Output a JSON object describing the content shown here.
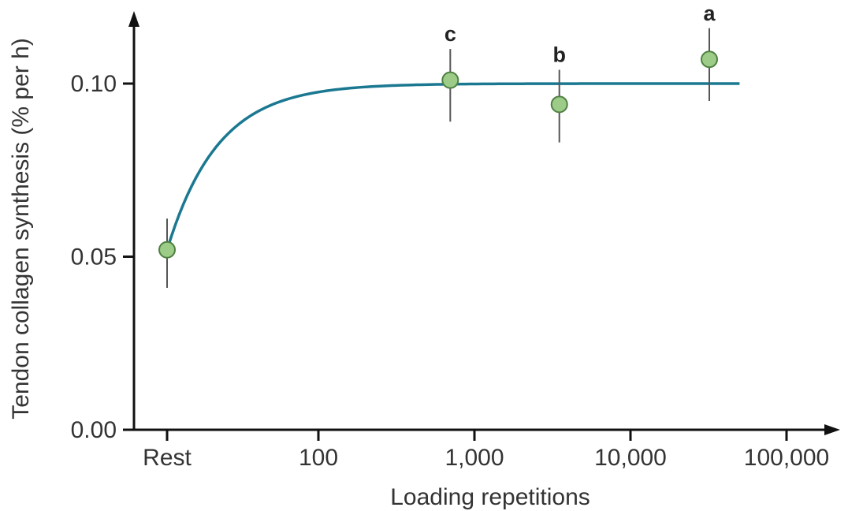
{
  "chart_data": {
    "type": "scatter",
    "title": "",
    "xlabel": "Loading repetitions",
    "ylabel": "Tendon collagen synthesis (% per h)",
    "x_scale": "log",
    "x_ticks": [
      {
        "value": "rest",
        "label": "Rest"
      },
      {
        "value": 100,
        "label": "100"
      },
      {
        "value": 1000,
        "label": "1,000"
      },
      {
        "value": 10000,
        "label": "10,000"
      },
      {
        "value": 100000,
        "label": "100,000"
      }
    ],
    "y_ticks": [
      {
        "value": 0.0,
        "label": "0.00"
      },
      {
        "value": 0.05,
        "label": "0.05"
      },
      {
        "value": 0.1,
        "label": "0.10"
      }
    ],
    "ylim": [
      0,
      0.12
    ],
    "grid": false,
    "points": [
      {
        "x": "rest",
        "y": 0.052,
        "err_low": 0.041,
        "err_high": 0.061,
        "label": ""
      },
      {
        "x": 700,
        "y": 0.101,
        "err_low": 0.089,
        "err_high": 0.11,
        "label": "c"
      },
      {
        "x": 3500,
        "y": 0.094,
        "err_low": 0.083,
        "err_high": 0.104,
        "label": "b"
      },
      {
        "x": 32000,
        "y": 0.107,
        "err_low": 0.095,
        "err_high": 0.116,
        "label": "a"
      }
    ],
    "fit_curve": {
      "type": "saturating",
      "x_start": "rest",
      "x_end": 50000,
      "y_start": 0.052,
      "y_max": 0.1
    },
    "colors": {
      "curve": "#1b7891",
      "point_fill": "#9ccc88",
      "point_stroke": "#4f8040",
      "error_bar": "#555555",
      "axis": "#111111"
    }
  }
}
